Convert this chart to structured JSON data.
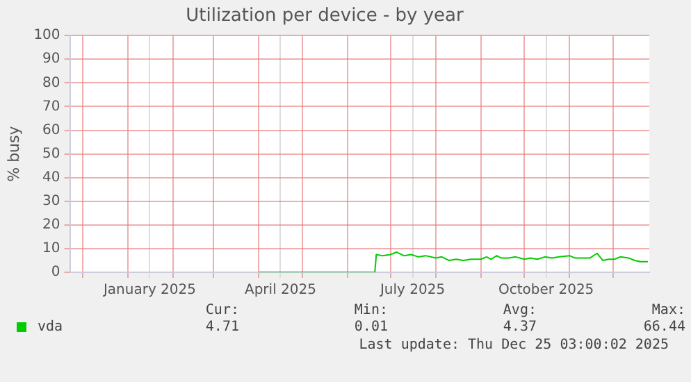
{
  "chart_data": {
    "type": "line",
    "title": "Utilization per device - by year",
    "ylabel": "% busy",
    "xlim": [
      "2024-11-22",
      "2025-12-26"
    ],
    "xticks": [
      {
        "value": "2024-12-01",
        "label": null
      },
      {
        "value": "2025-01-01",
        "label": null
      },
      {
        "value": "2025-01-16",
        "label": "January 2025"
      },
      {
        "value": "2025-02-01",
        "label": null
      },
      {
        "value": "2025-03-01",
        "label": null
      },
      {
        "value": "2025-04-01",
        "label": null
      },
      {
        "value": "2025-04-16",
        "label": "April 2025"
      },
      {
        "value": "2025-05-01",
        "label": null
      },
      {
        "value": "2025-06-01",
        "label": null
      },
      {
        "value": "2025-07-01",
        "label": null
      },
      {
        "value": "2025-07-16",
        "label": "July 2025"
      },
      {
        "value": "2025-08-01",
        "label": null
      },
      {
        "value": "2025-09-01",
        "label": null
      },
      {
        "value": "2025-10-01",
        "label": null
      },
      {
        "value": "2025-10-16",
        "label": "October 2025"
      },
      {
        "value": "2025-11-01",
        "label": null
      },
      {
        "value": "2025-12-01",
        "label": null
      }
    ],
    "ylim": [
      0,
      100
    ],
    "yticks": [
      0,
      10,
      20,
      30,
      40,
      50,
      60,
      70,
      80,
      90,
      100
    ],
    "grid": true,
    "legend": "bottom left",
    "series": [
      {
        "name": "vda",
        "color": "#00cc00",
        "x": [
          "2025-04-01",
          "2025-06-20",
          "2025-06-21",
          "2025-06-25",
          "2025-07-01",
          "2025-07-05",
          "2025-07-10",
          "2025-07-15",
          "2025-07-20",
          "2025-07-25",
          "2025-08-01",
          "2025-08-05",
          "2025-08-10",
          "2025-08-15",
          "2025-08-20",
          "2025-08-25",
          "2025-09-01",
          "2025-09-05",
          "2025-09-08",
          "2025-09-12",
          "2025-09-15",
          "2025-09-20",
          "2025-09-25",
          "2025-10-01",
          "2025-10-05",
          "2025-10-10",
          "2025-10-15",
          "2025-10-20",
          "2025-10-25",
          "2025-11-01",
          "2025-11-05",
          "2025-11-10",
          "2025-11-15",
          "2025-11-20",
          "2025-11-24",
          "2025-11-28",
          "2025-12-02",
          "2025-12-06",
          "2025-12-12",
          "2025-12-16",
          "2025-12-20",
          "2025-12-25"
        ],
        "values": [
          0,
          0,
          7.5,
          7,
          7.5,
          8.5,
          7,
          7.5,
          6.5,
          7,
          6,
          6.5,
          5,
          5.5,
          5,
          5.5,
          5.5,
          6.5,
          5.5,
          7,
          6,
          6,
          6.5,
          5.5,
          6,
          5.5,
          6.5,
          6,
          6.5,
          7,
          6,
          6,
          6,
          8,
          5,
          5.5,
          5.5,
          6.5,
          6,
          5,
          4.5,
          4.5
        ]
      }
    ],
    "annotations": [
      "Cur:",
      "Min:",
      "Avg:",
      "Max:",
      "4.71",
      "0.01",
      "4.37",
      "66.44",
      "Last update: Thu Dec 25 03:00:02 2025"
    ]
  }
}
